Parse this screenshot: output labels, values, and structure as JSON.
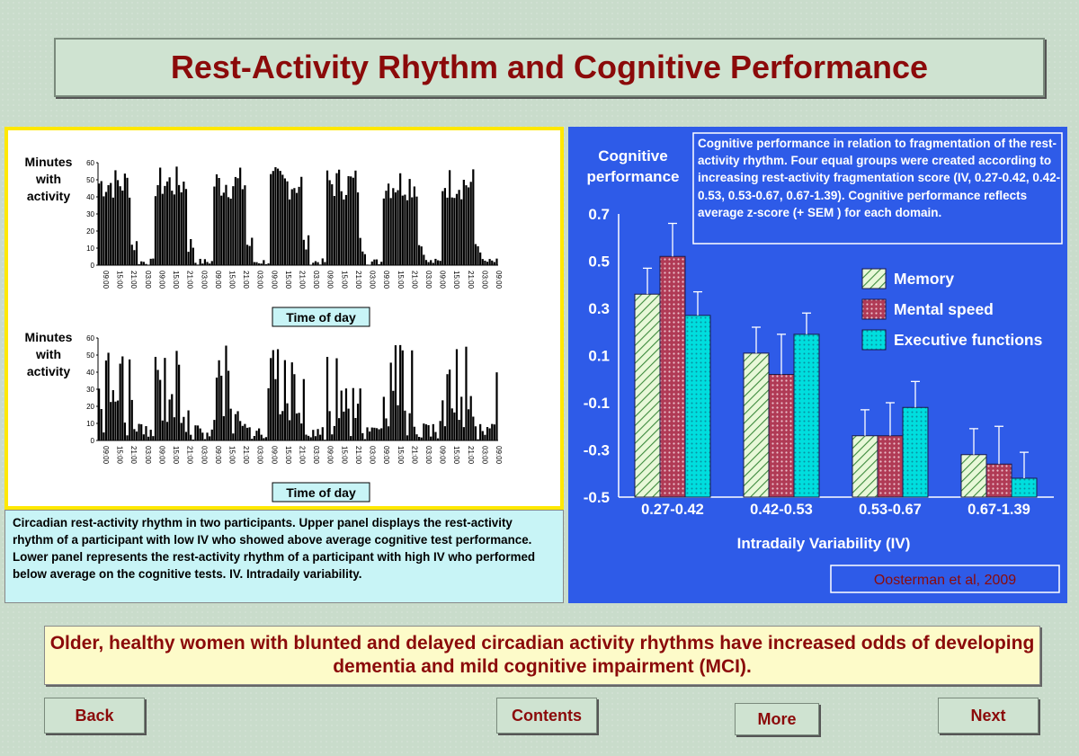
{
  "title": "Rest-Activity Rhythm and Cognitive Performance",
  "actigraphy": {
    "ylabel_lines": [
      "Minutes",
      "with",
      "activity"
    ],
    "xlabel": "Time of day",
    "yticks": [
      0,
      10,
      20,
      30,
      40,
      50,
      60
    ],
    "xticks": [
      "09:00",
      "15:00",
      "21:00",
      "03:00",
      "09:00",
      "15:00",
      "21:00",
      "03:00",
      "09:00",
      "15:00",
      "21:00",
      "03:00",
      "09:00",
      "15:00",
      "21:00",
      "03:00",
      "09:00",
      "15:00",
      "21:00",
      "03:00",
      "09:00",
      "15:00",
      "21:00",
      "03:00",
      "09:00",
      "15:00",
      "21:00",
      "03:00",
      "09:00"
    ],
    "caption": "Circadian rest-activity rhythm in two participants. Upper panel displays the rest-activity rhythm of a participant with low IV who showed above average cognitive test performance.   Lower panel represents the rest-activity rhythm of a participant with high IV who performed below average on the cognitive tests. IV. Intradaily variability."
  },
  "chart_data": {
    "type": "bar",
    "ylabel_lines": [
      "Cognitive",
      "performance"
    ],
    "xlabel": "Intradaily Variability (IV)",
    "categories": [
      "0.27-0.42",
      "0.42-0.53",
      "0.53-0.67",
      "0.67-1.39"
    ],
    "yticks": [
      "0.7",
      "0.5",
      "0.3",
      "0.1",
      "-0.1",
      "-0.3",
      "-0.5"
    ],
    "ylim": [
      -0.5,
      0.7
    ],
    "series": [
      {
        "name": "Memory",
        "values": [
          0.36,
          0.11,
          -0.24,
          -0.32
        ],
        "errors": [
          0.11,
          0.11,
          0.11,
          0.11
        ],
        "color": "#d6f2c0",
        "pattern": "hatch"
      },
      {
        "name": "Mental speed",
        "values": [
          0.52,
          0.02,
          -0.24,
          -0.36
        ],
        "errors": [
          0.14,
          0.17,
          0.14,
          0.16
        ],
        "color": "#a8324a",
        "pattern": "dots"
      },
      {
        "name": "Executive functions",
        "values": [
          0.27,
          0.19,
          -0.12,
          -0.42
        ],
        "errors": [
          0.1,
          0.09,
          0.11,
          0.11
        ],
        "color": "#00d8d8",
        "pattern": "dots"
      }
    ],
    "info_text": "Cognitive performance in relation to fragmentation of the rest-activity rhythm.  Four equal groups were created according to increasing rest-activity fragmentation score (IV, 0.27-0.42, 0.42-0.53, 0.53-0.67, 0.67-1.39). Cognitive performance reflects average z-score (+ SEM ) for each domain.",
    "citation": "Oosterman et al, 2009"
  },
  "conclusion": "Older, healthy women with blunted and delayed circadian activity rhythms have increased odds of developing dementia and mild cognitive impairment (MCI).",
  "nav": {
    "back": "Back",
    "contents": "Contents",
    "more": "More",
    "next": "Next"
  }
}
